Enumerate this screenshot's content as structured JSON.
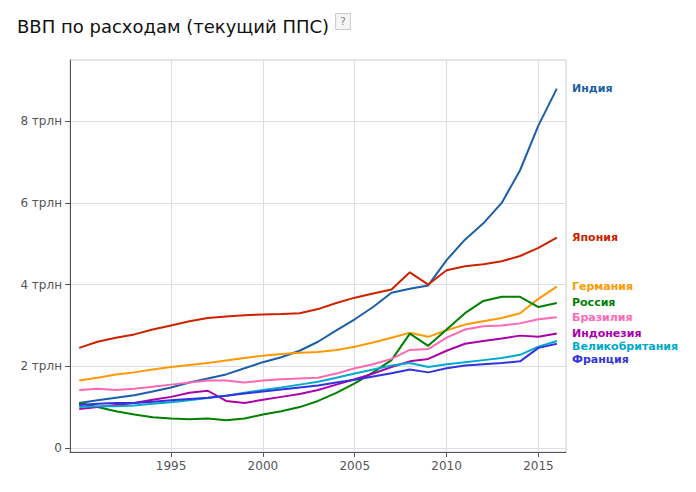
{
  "chart_data": {
    "type": "line",
    "title": "ВВП по расходам (текущий ППС)",
    "annotations": [
      "?"
    ],
    "x": [
      1990,
      1991,
      1992,
      1993,
      1994,
      1995,
      1996,
      1997,
      1998,
      1999,
      2000,
      2001,
      2002,
      2003,
      2004,
      2005,
      2006,
      2007,
      2008,
      2009,
      2010,
      2011,
      2012,
      2013,
      2014,
      2015,
      2016
    ],
    "xlim": [
      1989.5,
      2016.5
    ],
    "xticks": [
      1995,
      2000,
      2005,
      2010,
      2015
    ],
    "ylim": [
      -0.1,
      9.5
    ],
    "yticks": [
      0,
      {
        "value": 2,
        "label": "2 трлн"
      },
      {
        "value": 4,
        "label": "4 трлн"
      },
      {
        "value": 6,
        "label": "6 трлн"
      },
      {
        "value": 8,
        "label": "8 трлн"
      }
    ],
    "grid": true,
    "series": [
      {
        "name": "Индия",
        "color": "#1a5fa8",
        "values": [
          1.1,
          1.17,
          1.23,
          1.29,
          1.38,
          1.48,
          1.6,
          1.7,
          1.8,
          1.95,
          2.1,
          2.22,
          2.38,
          2.6,
          2.88,
          3.15,
          3.45,
          3.8,
          3.9,
          3.98,
          4.6,
          5.1,
          5.5,
          6.0,
          6.8,
          7.9,
          8.8
        ]
      },
      {
        "name": "Япония",
        "color": "#cc2200",
        "values": [
          2.45,
          2.6,
          2.7,
          2.78,
          2.9,
          3.0,
          3.1,
          3.18,
          3.22,
          3.25,
          3.27,
          3.28,
          3.3,
          3.4,
          3.55,
          3.68,
          3.78,
          3.88,
          4.3,
          4.0,
          4.35,
          4.45,
          4.5,
          4.57,
          4.7,
          4.9,
          5.15
        ]
      },
      {
        "name": "Германия",
        "color": "#ff9900",
        "values": [
          1.65,
          1.72,
          1.8,
          1.85,
          1.92,
          1.98,
          2.03,
          2.08,
          2.14,
          2.2,
          2.26,
          2.3,
          2.33,
          2.35,
          2.4,
          2.48,
          2.58,
          2.7,
          2.82,
          2.72,
          2.88,
          3.02,
          3.1,
          3.18,
          3.3,
          3.65,
          3.95
        ]
      },
      {
        "name": "Россия",
        "color": "#008000",
        "values": [
          1.1,
          1.0,
          0.9,
          0.82,
          0.75,
          0.72,
          0.7,
          0.72,
          0.68,
          0.72,
          0.82,
          0.9,
          1.0,
          1.15,
          1.35,
          1.58,
          1.85,
          2.15,
          2.8,
          2.5,
          2.9,
          3.3,
          3.6,
          3.7,
          3.7,
          3.45,
          3.55
        ]
      },
      {
        "name": "Бразилия",
        "color": "#ff69b4",
        "values": [
          1.42,
          1.45,
          1.42,
          1.45,
          1.5,
          1.55,
          1.6,
          1.65,
          1.65,
          1.6,
          1.65,
          1.68,
          1.7,
          1.72,
          1.82,
          1.95,
          2.05,
          2.18,
          2.4,
          2.42,
          2.7,
          2.9,
          2.98,
          3.0,
          3.05,
          3.15,
          3.2
        ]
      },
      {
        "name": "Индонезия",
        "color": "#aa00aa",
        "values": [
          0.95,
          1.0,
          1.05,
          1.1,
          1.18,
          1.25,
          1.35,
          1.4,
          1.15,
          1.1,
          1.18,
          1.25,
          1.32,
          1.42,
          1.55,
          1.68,
          1.82,
          1.98,
          2.12,
          2.18,
          2.38,
          2.55,
          2.62,
          2.68,
          2.75,
          2.72,
          2.8
        ]
      },
      {
        "name": "Великобритания",
        "color": "#00aacc",
        "values": [
          1.0,
          1.02,
          1.02,
          1.04,
          1.08,
          1.12,
          1.17,
          1.22,
          1.28,
          1.35,
          1.42,
          1.48,
          1.55,
          1.62,
          1.72,
          1.82,
          1.92,
          2.02,
          2.08,
          1.98,
          2.05,
          2.1,
          2.15,
          2.2,
          2.28,
          2.48,
          2.62
        ]
      },
      {
        "name": "Франция",
        "color": "#3333dd",
        "values": [
          1.05,
          1.08,
          1.1,
          1.1,
          1.13,
          1.17,
          1.2,
          1.23,
          1.28,
          1.33,
          1.38,
          1.43,
          1.48,
          1.53,
          1.6,
          1.67,
          1.75,
          1.83,
          1.92,
          1.85,
          1.95,
          2.02,
          2.05,
          2.08,
          2.12,
          2.45,
          2.55
        ]
      }
    ]
  }
}
